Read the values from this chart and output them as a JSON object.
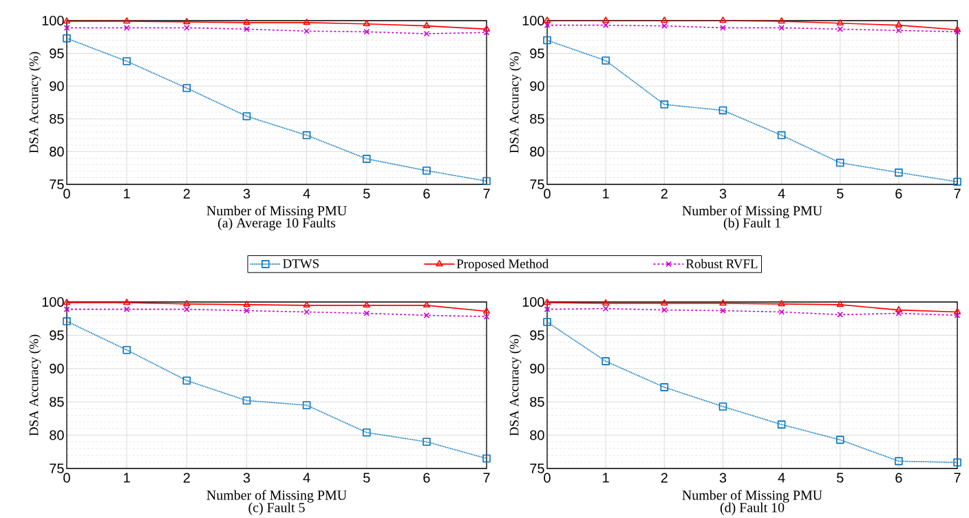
{
  "chart_data": [
    {
      "type": "line",
      "title": "(a) Average 10 Faults",
      "xlabel": "Number of Missing PMU",
      "ylabel": "DSA Accuracy (%)",
      "x": [
        0,
        1,
        2,
        3,
        4,
        5,
        6,
        7
      ],
      "xlim": [
        0,
        7
      ],
      "ylim": [
        75,
        100
      ],
      "xticks": [
        0,
        1,
        2,
        3,
        4,
        5,
        6,
        7
      ],
      "yticks": [
        75,
        80,
        85,
        90,
        95,
        100
      ],
      "grid": true,
      "legend": "bottom",
      "series": [
        {
          "name": "DTWS",
          "color": "#0072bd",
          "marker": "square",
          "line_style": "dotted",
          "values": [
            97.3,
            93.8,
            89.7,
            85.4,
            82.5,
            78.9,
            77.1,
            75.5
          ]
        },
        {
          "name": "Proposed Method",
          "color": "#ff0000",
          "marker": "triangle",
          "line_style": "solid",
          "values": [
            99.9,
            99.9,
            99.8,
            99.7,
            99.7,
            99.5,
            99.2,
            98.7
          ]
        },
        {
          "name": "Robust RVFL",
          "color": "#cc00cc",
          "marker": "cross",
          "line_style": "dashed",
          "values": [
            98.9,
            98.9,
            98.9,
            98.7,
            98.4,
            98.3,
            98.0,
            98.2
          ]
        }
      ]
    },
    {
      "type": "line",
      "title": "(b) Fault 1",
      "xlabel": "Number of Missing PMU",
      "ylabel": "DSA Accuracy (%)",
      "x": [
        0,
        1,
        2,
        3,
        4,
        5,
        6,
        7
      ],
      "xlim": [
        0,
        7
      ],
      "ylim": [
        75,
        100
      ],
      "xticks": [
        0,
        1,
        2,
        3,
        4,
        5,
        6,
        7
      ],
      "yticks": [
        75,
        80,
        85,
        90,
        95,
        100
      ],
      "grid": true,
      "series": [
        {
          "color": "#0072bd",
          "marker": "square",
          "line_style": "dotted",
          "values": [
            97.0,
            93.9,
            87.2,
            86.3,
            82.5,
            78.3,
            76.8,
            75.4
          ]
        },
        {
          "color": "#ff0000",
          "marker": "triangle",
          "line_style": "solid",
          "values": [
            100,
            100,
            100,
            100,
            99.9,
            99.6,
            99.3,
            98.6
          ]
        },
        {
          "color": "#cc00cc",
          "marker": "cross",
          "line_style": "dashed",
          "values": [
            99.3,
            99.3,
            99.2,
            98.9,
            98.9,
            98.7,
            98.5,
            98.3
          ]
        }
      ]
    },
    {
      "type": "line",
      "title": "(c) Fault 5",
      "xlabel": "Number of Missing PMU",
      "ylabel": "DSA Accuracy (%)",
      "x": [
        0,
        1,
        2,
        3,
        4,
        5,
        6,
        7
      ],
      "xlim": [
        0,
        7
      ],
      "ylim": [
        75,
        100
      ],
      "xticks": [
        0,
        1,
        2,
        3,
        4,
        5,
        6,
        7
      ],
      "yticks": [
        75,
        80,
        85,
        90,
        95,
        100
      ],
      "grid": true,
      "series": [
        {
          "color": "#0072bd",
          "marker": "square",
          "line_style": "dotted",
          "values": [
            97.1,
            92.8,
            88.2,
            85.2,
            84.5,
            80.4,
            79.0,
            76.5
          ]
        },
        {
          "color": "#ff0000",
          "marker": "triangle",
          "line_style": "solid",
          "values": [
            99.9,
            99.9,
            99.7,
            99.6,
            99.5,
            99.5,
            99.5,
            98.6
          ]
        },
        {
          "color": "#cc00cc",
          "marker": "cross",
          "line_style": "dashed",
          "values": [
            98.9,
            98.9,
            98.9,
            98.7,
            98.5,
            98.3,
            98.0,
            97.8
          ]
        }
      ]
    },
    {
      "type": "line",
      "title": "(d) Fault 10",
      "xlabel": "Number of Missing PMU",
      "ylabel": "DSA Accuracy (%)",
      "x": [
        0,
        1,
        2,
        3,
        4,
        5,
        6,
        7
      ],
      "xlim": [
        0,
        7
      ],
      "ylim": [
        75,
        100
      ],
      "xticks": [
        0,
        1,
        2,
        3,
        4,
        5,
        6,
        7
      ],
      "yticks": [
        75,
        80,
        85,
        90,
        95,
        100
      ],
      "grid": true,
      "series": [
        {
          "color": "#0072bd",
          "marker": "square",
          "line_style": "dotted",
          "values": [
            97.0,
            91.1,
            87.2,
            84.3,
            81.6,
            79.3,
            76.1,
            75.9
          ]
        },
        {
          "color": "#ff0000",
          "marker": "triangle",
          "line_style": "solid",
          "values": [
            99.9,
            99.8,
            99.8,
            99.8,
            99.7,
            99.6,
            98.8,
            98.5
          ]
        },
        {
          "color": "#cc00cc",
          "marker": "cross",
          "line_style": "dashed",
          "values": [
            98.9,
            99.0,
            98.8,
            98.7,
            98.5,
            98.1,
            98.3,
            98.0
          ]
        }
      ]
    }
  ]
}
